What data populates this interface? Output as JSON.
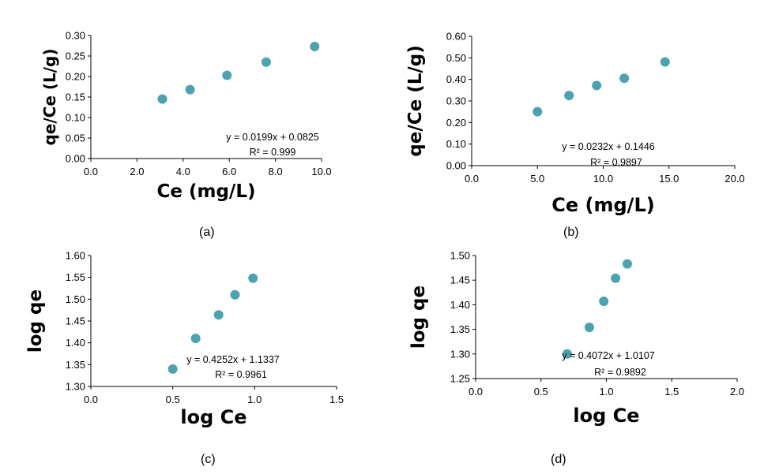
{
  "chart_data": [
    {
      "type": "scatter",
      "caption": "(a)",
      "xlabel": "Ce (mg/L)",
      "ylabel": "qe/Ce (L/g)",
      "xlim": [
        0,
        10
      ],
      "ylim": [
        0,
        0.3
      ],
      "xticks": [
        "0.0",
        "2.0",
        "4.0",
        "6.0",
        "8.0",
        "10.0"
      ],
      "yticks": [
        "0.00",
        "0.05",
        "0.10",
        "0.15",
        "0.20",
        "0.25",
        "0.30"
      ],
      "x": [
        3.1,
        4.3,
        5.9,
        7.6,
        9.7
      ],
      "y": [
        0.145,
        0.168,
        0.203,
        0.235,
        0.273
      ],
      "trend_equation": "y = 0.0199x + 0.0825",
      "r_squared": "R² = 0.999",
      "marker_color": "#4BA3B1",
      "grid": false
    },
    {
      "type": "scatter",
      "caption": "(b)",
      "xlabel": "Ce (mg/L)",
      "ylabel": "qe/Ce (L/g)",
      "xlim": [
        0,
        20
      ],
      "ylim": [
        0,
        0.6
      ],
      "xticks": [
        "0.0",
        "5.0",
        "10.0",
        "15.0",
        "20.0"
      ],
      "yticks": [
        "0.00",
        "0.10",
        "0.20",
        "0.30",
        "0.40",
        "0.50",
        "0.60"
      ],
      "x": [
        5.0,
        7.4,
        9.5,
        11.6,
        14.7
      ],
      "y": [
        0.25,
        0.325,
        0.372,
        0.405,
        0.481
      ],
      "trend_equation": "y = 0.0232x + 0.1446",
      "r_squared": "R² = 0.9897",
      "marker_color": "#4BA3B1",
      "grid": false
    },
    {
      "type": "scatter",
      "caption": "(c)",
      "xlabel": "log Ce",
      "ylabel": "log qe",
      "xlim": [
        0,
        1.5
      ],
      "ylim": [
        1.3,
        1.6
      ],
      "xticks": [
        "0.0",
        "0.5",
        "1.0",
        "1.5"
      ],
      "yticks": [
        "1.30",
        "1.35",
        "1.40",
        "1.45",
        "1.50",
        "1.55",
        "1.60"
      ],
      "x": [
        0.5,
        0.64,
        0.78,
        0.88,
        0.99
      ],
      "y": [
        1.34,
        1.41,
        1.464,
        1.51,
        1.548
      ],
      "trend_equation": "y = 0.4252x + 1.1337",
      "r_squared": "R² = 0.9961",
      "marker_color": "#4BA3B1",
      "grid": false
    },
    {
      "type": "scatter",
      "caption": "(d)",
      "xlabel": "log Ce",
      "ylabel": "log qe",
      "xlim": [
        0,
        2
      ],
      "ylim": [
        1.25,
        1.5
      ],
      "xticks": [
        "0.0",
        "0.5",
        "1.0",
        "1.5",
        "2.0"
      ],
      "yticks": [
        "1.25",
        "1.30",
        "1.35",
        "1.40",
        "1.45",
        "1.50"
      ],
      "x": [
        0.7,
        0.87,
        0.98,
        1.07,
        1.16
      ],
      "y": [
        1.3,
        1.354,
        1.407,
        1.454,
        1.483
      ],
      "trend_equation": "y = 0.4072x + 1.0107",
      "r_squared": "R² = 0.9892",
      "marker_color": "#4BA3B1",
      "grid": false
    }
  ]
}
